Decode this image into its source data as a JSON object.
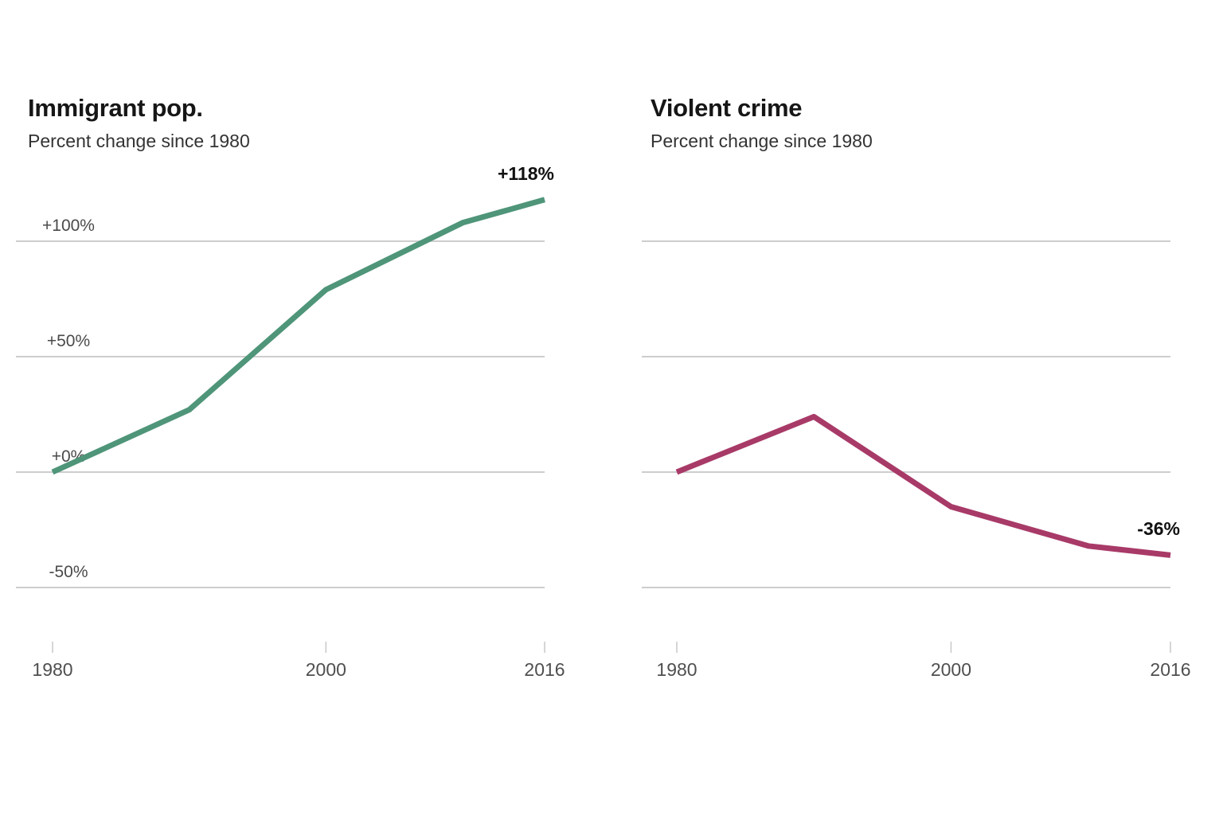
{
  "figure": {
    "background": "#ffffff"
  },
  "colors": {
    "gridline": "#cdcdcd",
    "tick_mark": "#c9c9c9",
    "title_text": "#161616",
    "subtitle_text": "#333333",
    "axis_label_text": "#4a4a4a",
    "annotation_text": "#111111",
    "immigrant_line": "#4f9579",
    "crime_line": "#a83a68"
  },
  "chart_data": [
    {
      "type": "line",
      "title": "Immigrant pop.",
      "subtitle": "Percent change since 1980",
      "series": [
        {
          "name": "immigrant-population-percent-change",
          "color": "#4f9579",
          "points": [
            {
              "x": 1980,
              "y": 0
            },
            {
              "x": 1990,
              "y": 27
            },
            {
              "x": 2000,
              "y": 79
            },
            {
              "x": 2010,
              "y": 108
            },
            {
              "x": 2016,
              "y": 118
            }
          ]
        }
      ],
      "end_label": "+118%",
      "xlim": [
        1980,
        2016
      ],
      "ylim": [
        -50,
        118
      ],
      "xticks": [
        {
          "value": 1980,
          "label": "1980"
        },
        {
          "value": 2000,
          "label": "2000"
        },
        {
          "value": 2016,
          "label": "2016"
        }
      ],
      "yticks": [
        {
          "value": 100,
          "label": "+100%"
        },
        {
          "value": 50,
          "label": "+50%"
        },
        {
          "value": 0,
          "label": "+0%"
        },
        {
          "value": -50,
          "label": "-50%"
        }
      ],
      "show_ytick_labels": true,
      "grid": true,
      "legend": "none"
    },
    {
      "type": "line",
      "title": "Violent crime",
      "subtitle": "Percent change since 1980",
      "series": [
        {
          "name": "violent-crime-percent-change",
          "color": "#a83a68",
          "points": [
            {
              "x": 1980,
              "y": 0
            },
            {
              "x": 1990,
              "y": 24
            },
            {
              "x": 2000,
              "y": -15
            },
            {
              "x": 2010,
              "y": -32
            },
            {
              "x": 2016,
              "y": -36
            }
          ]
        }
      ],
      "end_label": "-36%",
      "xlim": [
        1980,
        2016
      ],
      "ylim": [
        -50,
        118
      ],
      "xticks": [
        {
          "value": 1980,
          "label": "1980"
        },
        {
          "value": 2000,
          "label": "2000"
        },
        {
          "value": 2016,
          "label": "2016"
        }
      ],
      "yticks": [
        {
          "value": 100,
          "label": "+100%"
        },
        {
          "value": 50,
          "label": "+50%"
        },
        {
          "value": 0,
          "label": "+0%"
        },
        {
          "value": -50,
          "label": "-50%"
        }
      ],
      "show_ytick_labels": false,
      "grid": true,
      "legend": "none"
    }
  ]
}
